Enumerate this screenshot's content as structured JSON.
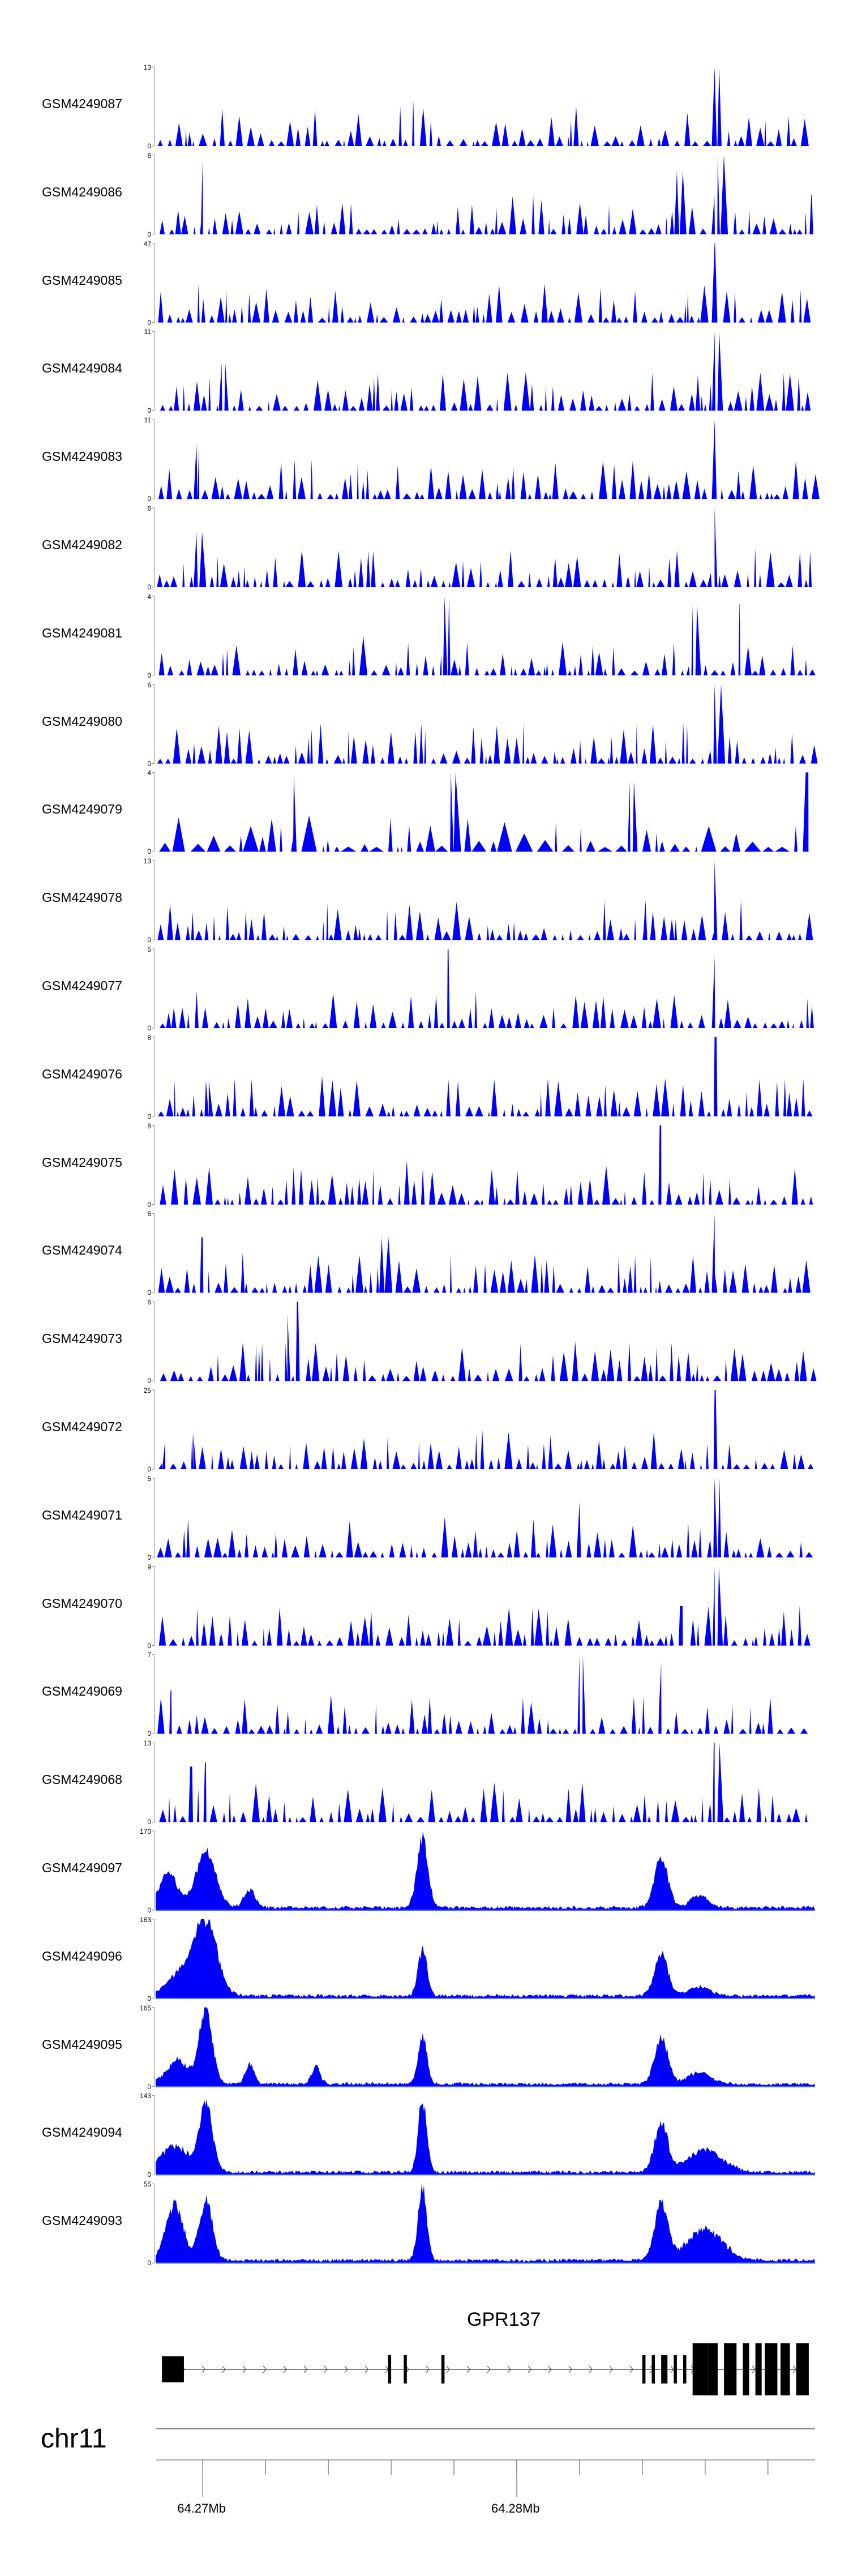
{
  "chart_data": {
    "type": "area",
    "title": "",
    "genome": {
      "chromosome": "chr11",
      "start_mb": 64.2685,
      "end_mb": 64.2895
    },
    "coord_ticks": [
      {
        "value": 64.27,
        "label": "64.27Mb"
      },
      {
        "value": 64.28,
        "label": "64.28Mb"
      }
    ],
    "minor_ticks_mb": [
      64.27,
      64.272,
      64.274,
      64.276,
      64.278,
      64.28,
      64.282,
      64.284,
      64.286,
      64.288
    ],
    "gene": {
      "name": "GPR137",
      "strand": "+",
      "start_mb": 64.2687,
      "end_mb": 64.2893,
      "exons": [
        {
          "start": 64.2687,
          "end": 64.2694,
          "kind": "utr"
        },
        {
          "start": 64.2759,
          "end": 64.276,
          "kind": "coding"
        },
        {
          "start": 64.2764,
          "end": 64.2765,
          "kind": "coding"
        },
        {
          "start": 64.2776,
          "end": 64.2777,
          "kind": "coding"
        },
        {
          "start": 64.284,
          "end": 64.2841,
          "kind": "coding"
        },
        {
          "start": 64.2843,
          "end": 64.2844,
          "kind": "coding"
        },
        {
          "start": 64.2846,
          "end": 64.2848,
          "kind": "coding"
        },
        {
          "start": 64.285,
          "end": 64.2851,
          "kind": "coding"
        },
        {
          "start": 64.2853,
          "end": 64.2854,
          "kind": "coding"
        },
        {
          "start": 64.2856,
          "end": 64.2861,
          "kind": "coding"
        },
        {
          "start": 64.2861,
          "end": 64.2864,
          "kind": "coding"
        },
        {
          "start": 64.2866,
          "end": 64.287,
          "kind": "coding"
        },
        {
          "start": 64.2872,
          "end": 64.2874,
          "kind": "coding"
        },
        {
          "start": 64.2876,
          "end": 64.2878,
          "kind": "coding"
        },
        {
          "start": 64.2879,
          "end": 64.2883,
          "kind": "coding"
        },
        {
          "start": 64.2884,
          "end": 64.2887,
          "kind": "coding"
        },
        {
          "start": 64.2889,
          "end": 64.2893,
          "kind": "coding"
        }
      ]
    },
    "series": [
      {
        "name": "GSM4249087",
        "ymax": 13,
        "kind": "sparse",
        "seed": 87,
        "peaks": [
          [
            64.2863,
            1.0
          ],
          [
            64.2767,
            0.55
          ]
        ]
      },
      {
        "name": "GSM4249086",
        "ymax": 6,
        "kind": "sparse",
        "seed": 86,
        "peaks": [
          [
            64.2864,
            1.0
          ],
          [
            64.27,
            0.95
          ],
          [
            64.2851,
            0.8
          ],
          [
            64.2894,
            0.5
          ]
        ]
      },
      {
        "name": "GSM4249085",
        "ymax": 47,
        "kind": "sparse",
        "seed": 85,
        "peaks": [
          [
            64.2863,
            1.0
          ]
        ]
      },
      {
        "name": "GSM4249084",
        "ymax": 11,
        "kind": "sparse",
        "seed": 84,
        "peaks": [
          [
            64.2863,
            1.0
          ],
          [
            64.2706,
            0.6
          ]
        ]
      },
      {
        "name": "GSM4249083",
        "ymax": 11,
        "kind": "sparse",
        "seed": 83,
        "peaks": [
          [
            64.2863,
            1.0
          ],
          [
            64.2698,
            0.7
          ]
        ]
      },
      {
        "name": "GSM4249082",
        "ymax": 6,
        "kind": "sparse",
        "seed": 82,
        "peaks": [
          [
            64.2863,
            1.0
          ],
          [
            64.2698,
            0.7
          ]
        ]
      },
      {
        "name": "GSM4249081",
        "ymax": 4,
        "kind": "sparse",
        "seed": 81,
        "peaks": [
          [
            64.2777,
            1.0
          ],
          [
            64.2856,
            0.9
          ],
          [
            64.2871,
            0.9
          ]
        ]
      },
      {
        "name": "GSM4249080",
        "ymax": 6,
        "kind": "sparse",
        "seed": 80,
        "peaks": [
          [
            64.2863,
            1.0
          ],
          [
            64.2853,
            0.5
          ]
        ]
      },
      {
        "name": "GSM4249079",
        "ymax": 4,
        "kind": "sparse",
        "seed": 79,
        "peaks": [
          [
            64.2892,
            1.0
          ],
          [
            64.2779,
            1.0
          ],
          [
            64.2729,
            1.0
          ],
          [
            64.2836,
            0.9
          ]
        ]
      },
      {
        "name": "GSM4249078",
        "ymax": 13,
        "kind": "sparse",
        "seed": 78,
        "peaks": [
          [
            64.2863,
            1.0
          ],
          [
            64.2841,
            0.5
          ]
        ]
      },
      {
        "name": "GSM4249077",
        "ymax": 5,
        "kind": "sparse",
        "seed": 77,
        "peaks": [
          [
            64.2778,
            1.0
          ],
          [
            64.2863,
            0.9
          ]
        ]
      },
      {
        "name": "GSM4249076",
        "ymax": 8,
        "kind": "sparse",
        "seed": 76,
        "peaks": [
          [
            64.2863,
            1.0
          ],
          [
            64.2701,
            0.45
          ]
        ]
      },
      {
        "name": "GSM4249075",
        "ymax": 8,
        "kind": "sparse",
        "seed": 75,
        "peaks": [
          [
            64.2846,
            1.0
          ],
          [
            64.2765,
            0.55
          ]
        ]
      },
      {
        "name": "GSM4249074",
        "ymax": 6,
        "kind": "sparse",
        "seed": 74,
        "peaks": [
          [
            64.2863,
            1.0
          ],
          [
            64.27,
            0.7
          ],
          [
            64.2757,
            0.7
          ]
        ]
      },
      {
        "name": "GSM4249073",
        "ymax": 6,
        "kind": "sparse",
        "seed": 73,
        "peaks": [
          [
            64.273,
            1.0
          ],
          [
            64.2727,
            0.85
          ]
        ]
      },
      {
        "name": "GSM4249072",
        "ymax": 25,
        "kind": "sparse",
        "seed": 72,
        "peaks": [
          [
            64.2863,
            1.0
          ],
          [
            64.2688,
            0.35
          ],
          [
            64.2697,
            0.45
          ]
        ]
      },
      {
        "name": "GSM4249071",
        "ymax": 5,
        "kind": "sparse",
        "seed": 71,
        "peaks": [
          [
            64.2863,
            1.0
          ],
          [
            64.282,
            0.7
          ]
        ]
      },
      {
        "name": "GSM4249070",
        "ymax": 9,
        "kind": "sparse",
        "seed": 70,
        "peaks": [
          [
            64.2863,
            1.0
          ],
          [
            64.2852,
            0.5
          ]
        ]
      },
      {
        "name": "GSM4249069",
        "ymax": 7,
        "kind": "sparse",
        "seed": 69,
        "peaks": [
          [
            64.282,
            1.0
          ],
          [
            64.2846,
            0.9
          ],
          [
            64.269,
            0.55
          ]
        ]
      },
      {
        "name": "GSM4249068",
        "ymax": 13,
        "kind": "sparse",
        "seed": 68,
        "peaks": [
          [
            64.2863,
            1.0
          ],
          [
            64.2696,
            0.7
          ],
          [
            64.2701,
            0.75
          ]
        ]
      },
      {
        "name": "GSM4249097",
        "ymax": 170,
        "kind": "dense",
        "seed": 97,
        "peaks": [
          [
            64.277,
            0.88,
            0.00025
          ],
          [
            64.2701,
            0.7,
            0.00045
          ],
          [
            64.2846,
            0.65,
            0.0003
          ],
          [
            64.2689,
            0.45,
            0.0004
          ],
          [
            64.2715,
            0.24,
            0.00025
          ],
          [
            64.2858,
            0.15,
            0.0004
          ]
        ]
      },
      {
        "name": "GSM4249096",
        "ymax": 163,
        "kind": "dense",
        "seed": 96,
        "peaks": [
          [
            64.2701,
            0.95,
            0.0005
          ],
          [
            64.277,
            0.6,
            0.0002
          ],
          [
            64.2846,
            0.55,
            0.0003
          ],
          [
            64.2693,
            0.3,
            0.0006
          ],
          [
            64.2858,
            0.12,
            0.0005
          ]
        ]
      },
      {
        "name": "GSM4249095",
        "ymax": 165,
        "kind": "dense",
        "seed": 95,
        "peaks": [
          [
            64.2701,
            0.95,
            0.0003
          ],
          [
            64.277,
            0.62,
            0.0002
          ],
          [
            64.2846,
            0.6,
            0.0003
          ],
          [
            64.2715,
            0.25,
            0.0002
          ],
          [
            64.2736,
            0.22,
            0.0002
          ],
          [
            64.2692,
            0.3,
            0.0005
          ],
          [
            64.2858,
            0.15,
            0.0005
          ]
        ]
      },
      {
        "name": "GSM4249094",
        "ymax": 143,
        "kind": "dense",
        "seed": 94,
        "peaks": [
          [
            64.2701,
            0.88,
            0.0003
          ],
          [
            64.277,
            0.92,
            0.0002
          ],
          [
            64.2846,
            0.62,
            0.0003
          ],
          [
            64.2691,
            0.35,
            0.0006
          ],
          [
            64.286,
            0.28,
            0.0008
          ]
        ]
      },
      {
        "name": "GSM4249093",
        "ymax": 55,
        "kind": "dense",
        "seed": 93,
        "peaks": [
          [
            64.277,
            0.92,
            0.0002
          ],
          [
            64.2701,
            0.78,
            0.0003
          ],
          [
            64.2691,
            0.7,
            0.0004
          ],
          [
            64.2846,
            0.72,
            0.0003
          ],
          [
            64.286,
            0.4,
            0.0008
          ]
        ]
      }
    ]
  },
  "colors": {
    "fill": "#0000ff",
    "dense_baseline": "#4a6cf0",
    "axis": "#888888",
    "gene": "#000000"
  }
}
